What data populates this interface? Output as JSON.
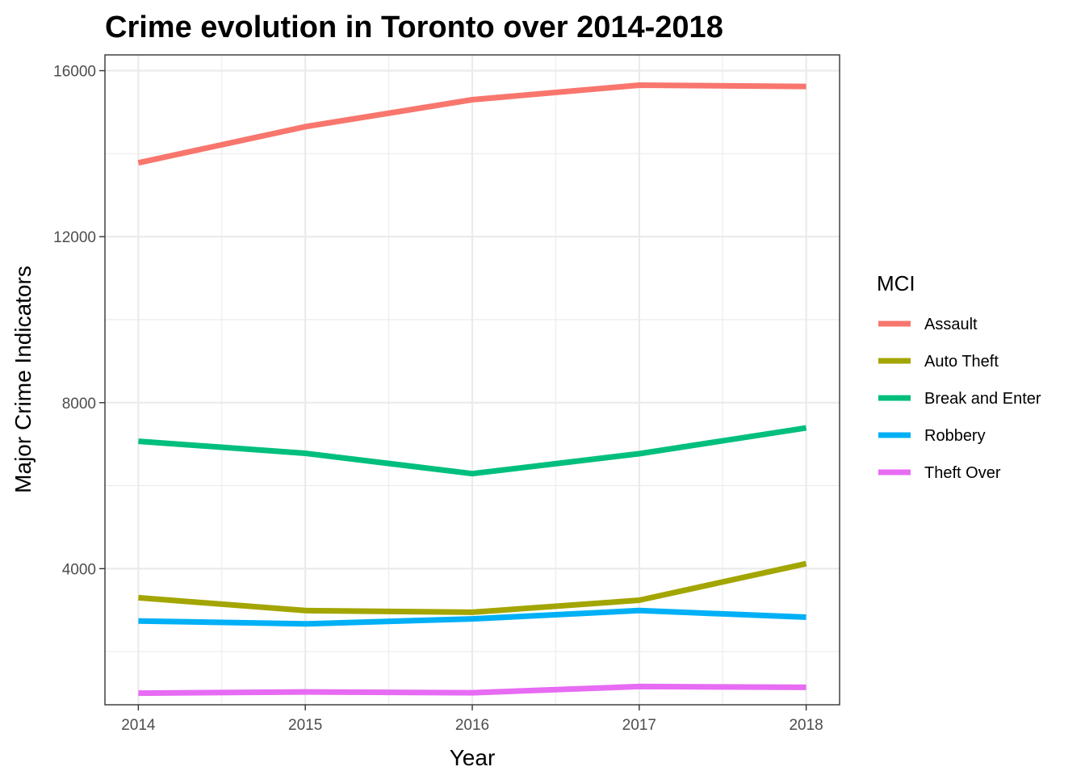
{
  "chart_data": {
    "type": "line",
    "title": "Crime evolution in Toronto over 2014-2018",
    "xlabel": "Year",
    "ylabel": "Major Crime Indicators",
    "x": [
      2014,
      2015,
      2016,
      2017,
      2018
    ],
    "xlim": [
      2013.8,
      2018.2
    ],
    "ylim": [
      720,
      16380
    ],
    "yticks": [
      4000,
      8000,
      12000,
      16000
    ],
    "ytick_labels": [
      "4000",
      "8000",
      "12000",
      "16000"
    ],
    "xtick_labels": [
      "2014",
      "2015",
      "2016",
      "2017",
      "2018"
    ],
    "grid": true,
    "legend": {
      "title": "MCI",
      "position": "right"
    },
    "series": [
      {
        "name": "Assault",
        "color": "#F8766D",
        "values": [
          13780,
          14650,
          15300,
          15650,
          15620
        ]
      },
      {
        "name": "Auto Theft",
        "color": "#A3A500",
        "values": [
          3300,
          2990,
          2950,
          3240,
          4120
        ]
      },
      {
        "name": "Break and Enter",
        "color": "#00BF7D",
        "values": [
          7070,
          6780,
          6290,
          6770,
          7390
        ]
      },
      {
        "name": "Robbery",
        "color": "#00B0F6",
        "values": [
          2740,
          2670,
          2790,
          2990,
          2830
        ]
      },
      {
        "name": "Theft Over",
        "color": "#E76BF3",
        "values": [
          1000,
          1030,
          1010,
          1160,
          1140
        ]
      }
    ]
  }
}
